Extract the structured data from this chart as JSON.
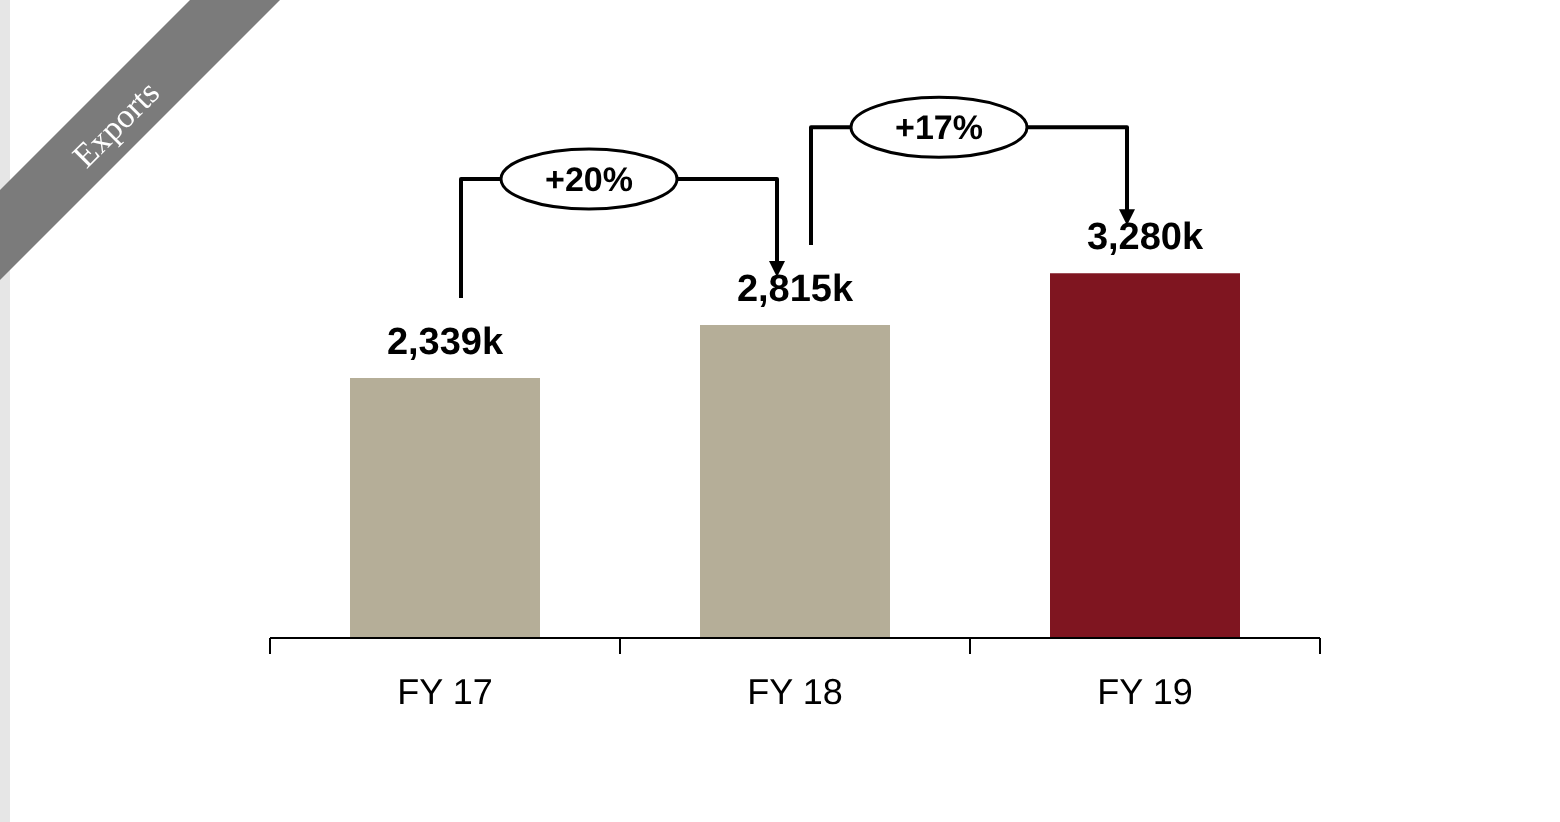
{
  "chart_data": {
    "type": "bar",
    "title": "Exports",
    "categories": [
      "FY 17",
      "FY 18",
      "FY 19"
    ],
    "values": [
      2339,
      2815,
      3280
    ],
    "colors": [
      "#b5ae98",
      "#b5ae98",
      "#7f1520"
    ],
    "value_labels": [
      "2,339k",
      "2,815k",
      "3,280k"
    ],
    "annotations": [
      "+20%",
      "+17%"
    ],
    "grid": false,
    "legend": false
  }
}
